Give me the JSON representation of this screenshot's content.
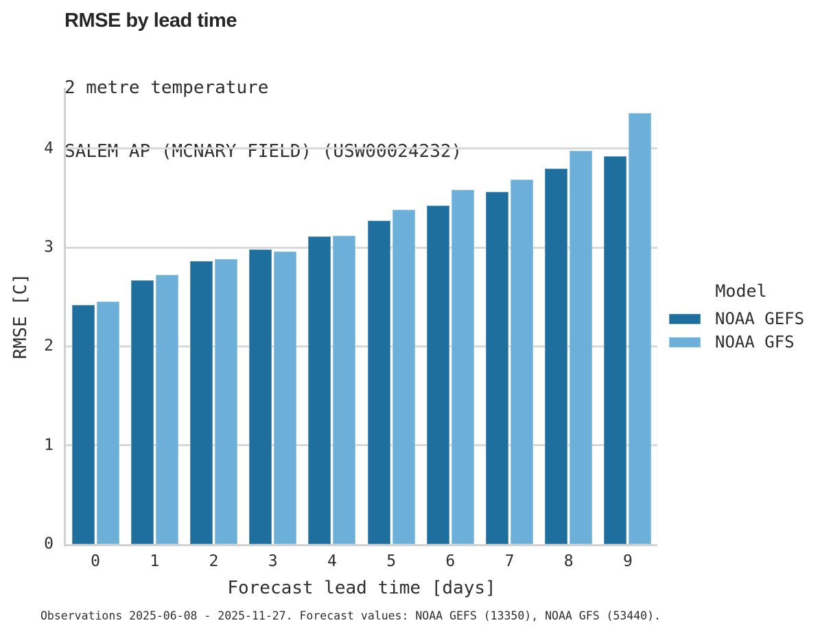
{
  "title": "RMSE by lead time",
  "subtitle_line1": "2 metre temperature",
  "subtitle_line2": "SALEM AP (MCNARY FIELD) (USW00024232)",
  "caption": "Observations 2025-06-08 - 2025-11-27. Forecast values: NOAA GEFS (13350), NOAA GFS (53440).",
  "colors": {
    "gefs_blue": "#1e6f9e",
    "gfs_blue": "#6cb0d9",
    "gridline": "#d9d9d9",
    "spine": "#d2d2d2",
    "text": "#2e2e2e",
    "title_text": "#262626"
  },
  "legend": {
    "title": "Model",
    "items": [
      {
        "label": "NOAA GEFS",
        "color": "#1e6f9e"
      },
      {
        "label": "NOAA GFS",
        "color": "#6cb0d9"
      }
    ]
  },
  "chart_data": {
    "type": "bar",
    "title": "RMSE by lead time",
    "subtitle": [
      "2 metre temperature",
      "SALEM AP (MCNARY FIELD) (USW00024232)"
    ],
    "xlabel": "Forecast lead time [days]",
    "ylabel": "RMSE [C]",
    "categories": [
      "0",
      "1",
      "2",
      "3",
      "4",
      "5",
      "6",
      "7",
      "8",
      "9"
    ],
    "series": [
      {
        "name": "NOAA GEFS",
        "color": "#1e6f9e",
        "values": [
          2.42,
          2.67,
          2.86,
          2.98,
          3.11,
          3.27,
          3.42,
          3.56,
          3.8,
          3.92
        ]
      },
      {
        "name": "NOAA GFS",
        "color": "#6cb0d9",
        "values": [
          2.45,
          2.72,
          2.88,
          2.96,
          3.12,
          3.38,
          3.58,
          3.69,
          3.98,
          4.36
        ]
      }
    ],
    "ylim": [
      0,
      4.615
    ],
    "yticks": [
      0,
      1,
      2,
      3,
      4
    ],
    "grid": true,
    "legend_title": "Model",
    "legend_position": "right",
    "caption": "Observations 2025-06-08 - 2025-11-27. Forecast values: NOAA GEFS (13350), NOAA GFS (53440)."
  }
}
